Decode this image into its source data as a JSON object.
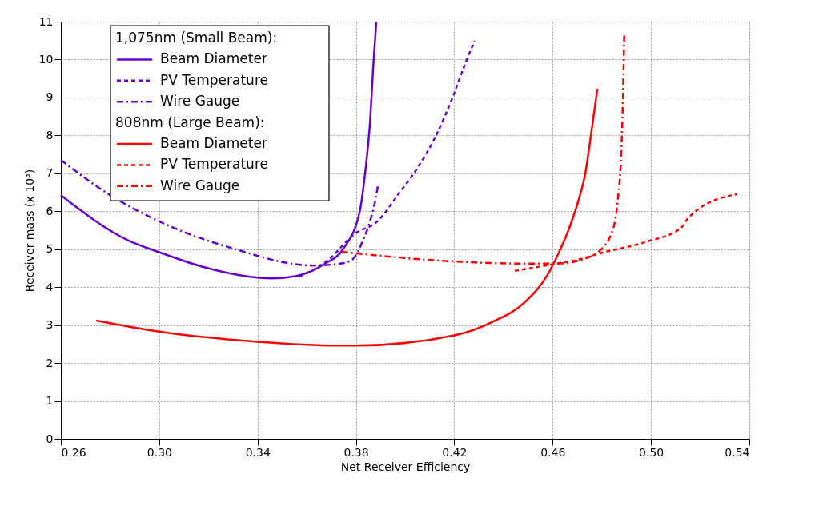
{
  "chart_data": {
    "type": "line",
    "xlabel": "Net Receiver Efficiency",
    "ylabel": "Receiver mass (x 10³)",
    "xlim": [
      0.26,
      0.54
    ],
    "xticks": [
      {
        "value": 0.26,
        "label": "0.26"
      },
      {
        "value": 0.3,
        "label": "0.30"
      },
      {
        "value": 0.34,
        "label": "0.34"
      },
      {
        "value": 0.38,
        "label": "0.38"
      },
      {
        "value": 0.42,
        "label": "0.42"
      },
      {
        "value": 0.46,
        "label": "0.46"
      },
      {
        "value": 0.5,
        "label": "0.50"
      },
      {
        "value": 0.54,
        "label": "0.54"
      }
    ],
    "ylim": [
      0,
      11
    ],
    "yticks": [
      0,
      1,
      2,
      3,
      4,
      5,
      6,
      7,
      8,
      9,
      10,
      11
    ],
    "grid": true,
    "legend": "top left",
    "marker": "none",
    "legend_title": [
      "1,075nm (Small Beam):",
      "808nm (Large Beam):"
    ],
    "series": [
      {
        "name": "Beam Diameter",
        "color": "#6600cc",
        "line_style": "solid",
        "x": [
          0.26,
          0.2875,
          0.3,
          0.318,
          0.34,
          0.3454,
          0.3554,
          0.3675,
          0.3749,
          0.3816,
          0.3838,
          0.3858,
          0.387,
          0.3883
        ],
        "values": [
          6.42,
          5.23,
          4.92,
          4.53,
          4.25,
          4.23,
          4.29,
          4.62,
          5.01,
          6.01,
          7.04,
          8.41,
          9.77,
          11.0
        ]
      },
      {
        "name": "PV Temperature",
        "color": "#6600cc",
        "line_style": "dashed",
        "x": [
          0.357,
          0.3688,
          0.3794,
          0.389,
          0.3976,
          0.404,
          0.4126,
          0.419,
          0.4254,
          0.4283
        ],
        "values": [
          4.27,
          4.72,
          5.4,
          5.75,
          6.48,
          7.04,
          8.0,
          8.95,
          10.05,
          10.49
        ]
      },
      {
        "name": "Wire Gauge",
        "color": "#6600cc",
        "line_style": "dashdot",
        "x": [
          0.26,
          0.2802,
          0.2994,
          0.3294,
          0.3627,
          0.3736,
          0.3784,
          0.3826,
          0.3858,
          0.3877,
          0.389
        ],
        "values": [
          7.35,
          6.42,
          5.75,
          5.03,
          4.57,
          4.62,
          4.72,
          5.19,
          5.75,
          6.22,
          6.69
        ]
      },
      {
        "name": "Beam Diameter",
        "color": "#ff0000",
        "line_style": "solid",
        "x": [
          0.2744,
          0.3,
          0.34,
          0.3725,
          0.38,
          0.42,
          0.4354,
          0.4488,
          0.4578,
          0.4626,
          0.467,
          0.4702,
          0.4734,
          0.4757,
          0.4782
        ],
        "values": [
          3.12,
          2.83,
          2.56,
          2.46,
          2.46,
          2.73,
          3.08,
          3.61,
          4.31,
          4.92,
          5.6,
          6.22,
          7.04,
          8.06,
          9.23
        ]
      },
      {
        "name": "PV Temperature",
        "color": "#ff0000",
        "line_style": "dashed",
        "x": [
          0.4446,
          0.4616,
          0.4702,
          0.4786,
          0.4978,
          0.5122,
          0.515,
          0.5326,
          0.535
        ],
        "values": [
          4.43,
          4.62,
          4.72,
          4.88,
          5.19,
          5.56,
          5.81,
          6.42,
          6.45
        ]
      },
      {
        "name": "Wire Gauge",
        "color": "#ff0000",
        "line_style": "dashdot",
        "x": [
          0.3742,
          0.419,
          0.4488,
          0.4616,
          0.4766,
          0.4786,
          0.4846,
          0.4866,
          0.4878,
          0.4885,
          0.4891
        ],
        "values": [
          4.93,
          4.68,
          4.62,
          4.62,
          4.84,
          4.93,
          5.54,
          6.36,
          7.39,
          8.74,
          10.63
        ]
      }
    ]
  }
}
